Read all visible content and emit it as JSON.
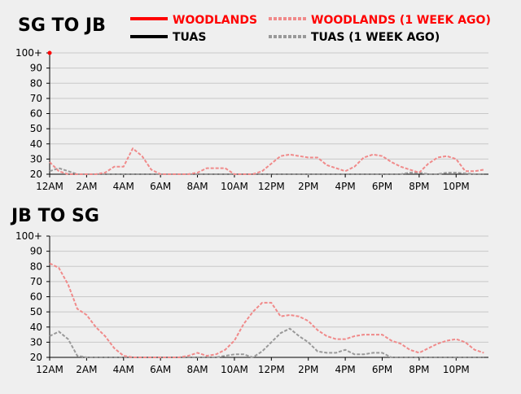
{
  "colors": {
    "woodlands": "#ff0000",
    "tuas": "#000000",
    "woodlands_prev": "#f08a8a",
    "tuas_prev": "#999999",
    "grid": "#c8c8c8",
    "background": "#efefef"
  },
  "legend": {
    "woodlands": "WOODLANDS",
    "tuas": "TUAS",
    "woodlands_prev": "WOODLANDS (1 WEEK AGO)",
    "tuas_prev": "TUAS (1 WEEK AGO)"
  },
  "chart_data": [
    {
      "type": "line",
      "title": "SG TO JB",
      "x_labels": [
        "12AM",
        "2AM",
        "4AM",
        "6AM",
        "8AM",
        "10AM",
        "12PM",
        "2PM",
        "4PM",
        "6PM",
        "8PM",
        "10PM"
      ],
      "y_ticks": [
        "100+",
        "90",
        "80",
        "70",
        "60",
        "50",
        "40",
        "30",
        "20"
      ],
      "ylim": [
        20,
        100
      ],
      "xlim_hours": [
        0,
        23.75
      ],
      "grid": true,
      "legend_position": "top-right",
      "series": [
        {
          "key": "woodlands",
          "name": "WOODLANDS",
          "dash": "solid",
          "x": [
            0
          ],
          "y": [
            100
          ]
        },
        {
          "key": "tuas",
          "name": "TUAS",
          "dash": "solid",
          "x": [],
          "y": []
        },
        {
          "key": "woodlands_prev",
          "name": "WOODLANDS (1 WEEK AGO)",
          "dash": "dashed",
          "x": [
            0,
            0.5,
            1,
            1.5,
            2,
            2.5,
            3,
            3.5,
            4,
            4.5,
            5,
            5.5,
            6,
            6.5,
            7,
            7.5,
            8,
            8.5,
            9,
            9.5,
            10,
            10.5,
            11,
            11.5,
            12,
            12.5,
            13,
            13.5,
            14,
            14.5,
            15,
            15.5,
            16,
            16.5,
            17,
            17.5,
            18,
            18.5,
            19,
            19.5,
            20,
            20.5,
            21,
            21.5,
            22,
            22.5,
            23,
            23.5
          ],
          "y": [
            28,
            22,
            20,
            20,
            20,
            20,
            21,
            25,
            25,
            37,
            32,
            23,
            20,
            20,
            20,
            20,
            21,
            24,
            24,
            24,
            20,
            20,
            20,
            22,
            27,
            32,
            33,
            32,
            31,
            31,
            26,
            24,
            22,
            25,
            31,
            33,
            32,
            28,
            25,
            23,
            21,
            27,
            31,
            32,
            30,
            22,
            22,
            23
          ]
        },
        {
          "key": "tuas_prev",
          "name": "TUAS (1 WEEK AGO)",
          "dash": "dashed",
          "x": [
            0,
            0.5,
            1,
            1.5,
            2,
            3,
            4,
            5,
            6,
            7,
            8,
            9,
            10,
            11,
            12,
            13,
            14,
            15,
            16,
            17,
            18,
            19,
            19.5,
            20,
            20.5,
            21,
            21.5,
            22,
            23,
            23.5
          ],
          "y": [
            22,
            24,
            22,
            20,
            20,
            20,
            20,
            20,
            20,
            20,
            20,
            20,
            20,
            20,
            20,
            20,
            20,
            20,
            20,
            20,
            20,
            20,
            21,
            21,
            20,
            20,
            21,
            21,
            20,
            20
          ]
        }
      ]
    },
    {
      "type": "line",
      "title": "JB TO SG",
      "x_labels": [
        "12AM",
        "2AM",
        "4AM",
        "6AM",
        "8AM",
        "10AM",
        "12PM",
        "2PM",
        "4PM",
        "6PM",
        "8PM",
        "10PM"
      ],
      "y_ticks": [
        "100+",
        "90",
        "80",
        "70",
        "60",
        "50",
        "40",
        "30",
        "20"
      ],
      "ylim": [
        20,
        100
      ],
      "xlim_hours": [
        0,
        23.75
      ],
      "grid": true,
      "series": [
        {
          "key": "woodlands",
          "name": "WOODLANDS",
          "dash": "solid",
          "x": [],
          "y": []
        },
        {
          "key": "tuas",
          "name": "TUAS",
          "dash": "solid",
          "x": [],
          "y": []
        },
        {
          "key": "woodlands_prev",
          "name": "WOODLANDS (1 WEEK AGO)",
          "dash": "dashed",
          "x": [
            0,
            0.5,
            1,
            1.5,
            2,
            2.5,
            3,
            3.5,
            4,
            4.5,
            5,
            5.5,
            6,
            6.5,
            7,
            7.5,
            8,
            8.5,
            9,
            9.5,
            10,
            10.5,
            11,
            11.5,
            12,
            12.5,
            13,
            13.5,
            14,
            14.5,
            15,
            15.5,
            16,
            16.5,
            17,
            17.5,
            18,
            18.5,
            19,
            19.5,
            20,
            20.5,
            21,
            21.5,
            22,
            22.5,
            23,
            23.5
          ],
          "y": [
            82,
            79,
            68,
            52,
            48,
            40,
            34,
            26,
            21,
            20,
            20,
            20,
            20,
            20,
            20,
            21,
            23,
            21,
            22,
            25,
            31,
            42,
            50,
            56,
            56,
            47,
            48,
            47,
            44,
            38,
            34,
            32,
            32,
            34,
            35,
            35,
            35,
            31,
            29,
            25,
            23,
            26,
            29,
            31,
            32,
            30,
            25,
            23
          ]
        },
        {
          "key": "tuas_prev",
          "name": "TUAS (1 WEEK AGO)",
          "dash": "dashed",
          "x": [
            0,
            0.5,
            1,
            1.5,
            2,
            2.5,
            3,
            4,
            5,
            6,
            7,
            8,
            8.5,
            9,
            9.5,
            10,
            10.5,
            11,
            11.5,
            12,
            12.5,
            13,
            13.5,
            14,
            14.5,
            15,
            15.5,
            16,
            16.5,
            17,
            17.5,
            18,
            18.5,
            19,
            19.5,
            20,
            20.5,
            21,
            21.5,
            22,
            23,
            23.5
          ],
          "y": [
            34,
            37,
            32,
            21,
            20,
            20,
            20,
            20,
            20,
            20,
            20,
            20,
            20,
            20,
            21,
            22,
            22,
            20,
            24,
            30,
            36,
            39,
            34,
            30,
            24,
            23,
            23,
            25,
            22,
            22,
            23,
            23,
            20,
            20,
            20,
            20,
            20,
            20,
            20,
            20,
            20,
            20
          ]
        }
      ]
    }
  ]
}
